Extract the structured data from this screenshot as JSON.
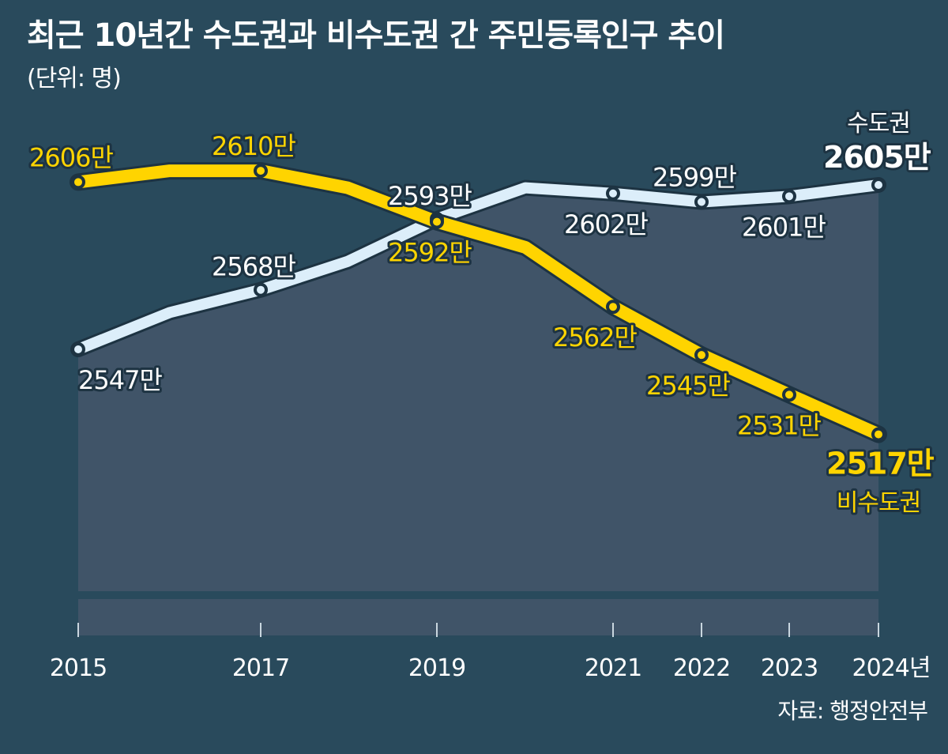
{
  "header": {
    "title": "최근 10년간 수도권과 비수도권 간 주민등록인구 추이",
    "unit": "(단위: 명)"
  },
  "source": "자료: 행정안전부",
  "colors": {
    "background": "#294a5c",
    "area": "#405468",
    "capital": "#dceefa",
    "non_capital": "#ffd400",
    "outline": "#1d3342"
  },
  "chart_data": {
    "type": "line",
    "x": [
      2015,
      2016,
      2017,
      2018,
      2019,
      2020,
      2021,
      2022,
      2023,
      2024
    ],
    "x_tick_labels": [
      "2015",
      "2017",
      "2019",
      "2021",
      "2022",
      "2023",
      "2024년"
    ],
    "x_tick_values": [
      2015,
      2017,
      2019,
      2021,
      2022,
      2023,
      2024
    ],
    "series": [
      {
        "name": "수도권",
        "values": [
          2547,
          2560,
          2568,
          2578,
          2593,
          2604,
          2602,
          2599,
          2601,
          2605
        ],
        "labeled": [
          {
            "x": 2015,
            "text": "2547만"
          },
          {
            "x": 2017,
            "text": "2568만"
          },
          {
            "x": 2019,
            "text": "2593만"
          },
          {
            "x": 2021,
            "text": "2602만"
          },
          {
            "x": 2022,
            "text": "2599만"
          },
          {
            "x": 2023,
            "text": "2601만"
          },
          {
            "x": 2024,
            "text": "2605만"
          }
        ]
      },
      {
        "name": "비수도권",
        "values": [
          2606,
          2610,
          2610,
          2604,
          2592,
          2583,
          2562,
          2545,
          2531,
          2517
        ],
        "labeled": [
          {
            "x": 2015,
            "text": "2606만"
          },
          {
            "x": 2017,
            "text": "2610만"
          },
          {
            "x": 2019,
            "text": "2592만"
          },
          {
            "x": 2021,
            "text": "2562만"
          },
          {
            "x": 2022,
            "text": "2545만"
          },
          {
            "x": 2023,
            "text": "2531만"
          },
          {
            "x": 2024,
            "text": "2517만"
          }
        ]
      }
    ],
    "unit_suffix": "만",
    "grid": false,
    "area_fill_under": "수도권"
  }
}
